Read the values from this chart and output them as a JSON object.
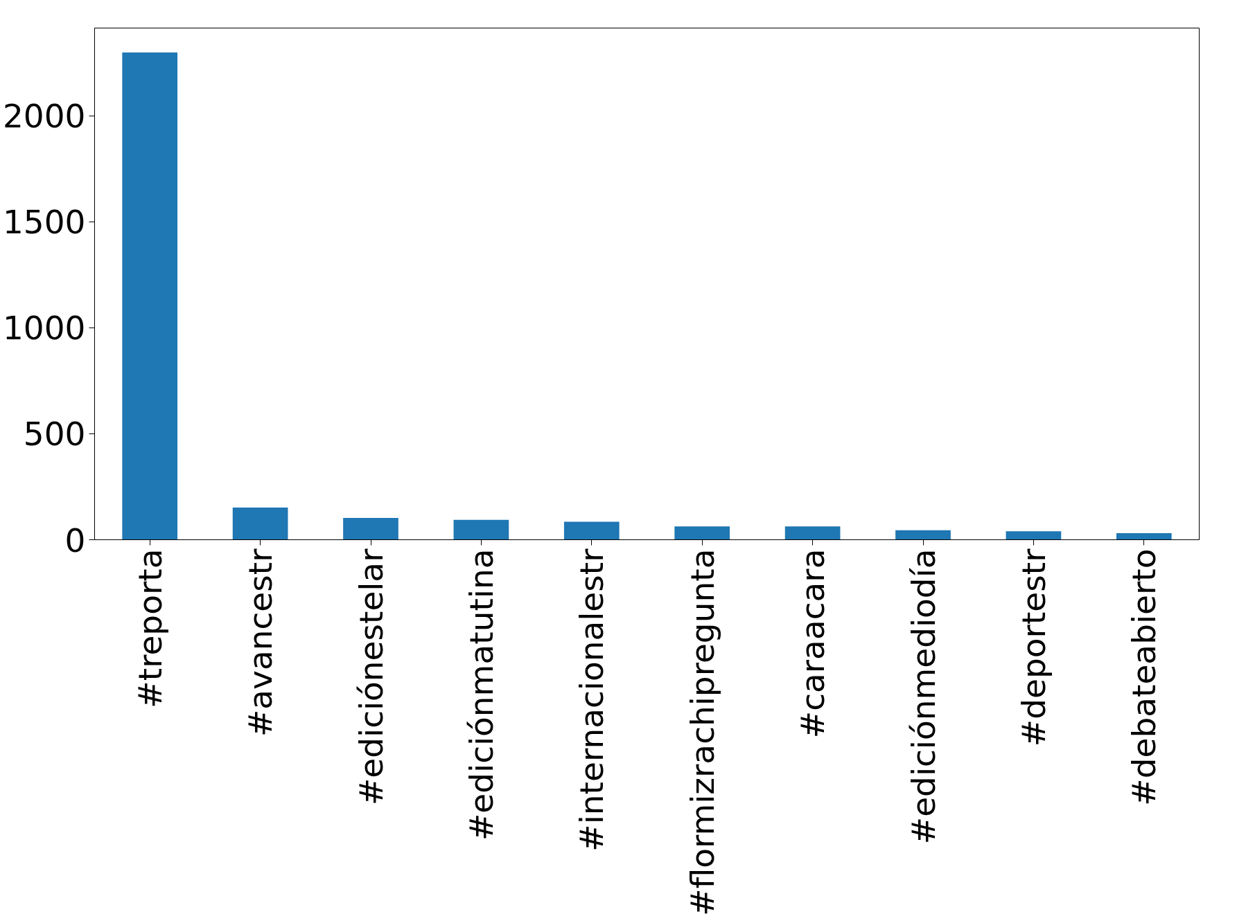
{
  "chart_data": {
    "type": "bar",
    "categories": [
      "#treporta",
      "#avancestr",
      "#ediciónestelar",
      "#ediciónmatutina",
      "#internacionalestr",
      "#flormizrachipregunta",
      "#caraacara",
      "#ediciónmediodía",
      "#deportestr",
      "#debateabierto"
    ],
    "values": [
      2300,
      152,
      103,
      94,
      85,
      63,
      63,
      45,
      40,
      31
    ],
    "color": "#1f77b4",
    "ylim": [
      0,
      2415
    ],
    "yticks": [
      0,
      500,
      1000,
      1500,
      2000
    ],
    "grid": false
  }
}
